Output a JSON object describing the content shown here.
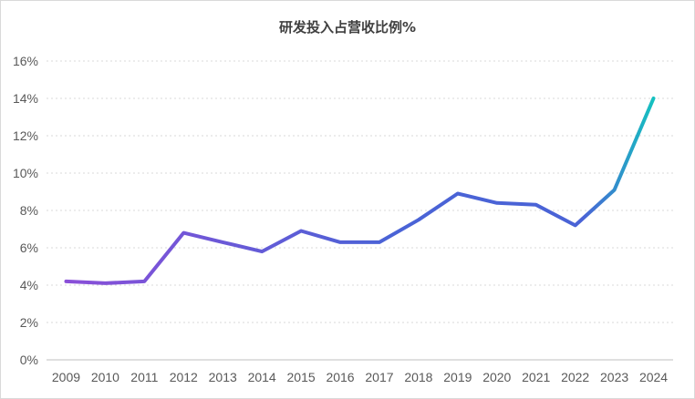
{
  "chart_data": {
    "type": "line",
    "title": "研发投入占营收比例%",
    "xlabel": "",
    "ylabel": "",
    "x": [
      "2009",
      "2010",
      "2011",
      "2012",
      "2013",
      "2014",
      "2015",
      "2016",
      "2017",
      "2018",
      "2019",
      "2020",
      "2021",
      "2022",
      "2023",
      "2024"
    ],
    "series": [
      {
        "name": "研发投入占营收比例%",
        "values": [
          4.2,
          4.1,
          4.2,
          6.8,
          6.3,
          5.8,
          6.9,
          6.3,
          6.3,
          7.5,
          8.9,
          8.4,
          8.3,
          7.2,
          9.1,
          14.0
        ]
      }
    ],
    "ylim": [
      0,
      16
    ],
    "yticks": [
      0,
      2,
      4,
      6,
      8,
      10,
      12,
      14,
      16
    ],
    "ytick_labels": [
      "0%",
      "2%",
      "4%",
      "6%",
      "8%",
      "10%",
      "12%",
      "14%",
      "16%"
    ],
    "grid": true,
    "legend": "none",
    "colors": {
      "line_start": "#8a4fd8",
      "line_mid": "#4a63d6",
      "line_end": "#15c1c0",
      "grid": "#d9d9d9",
      "axis": "#bfbfbf"
    }
  }
}
